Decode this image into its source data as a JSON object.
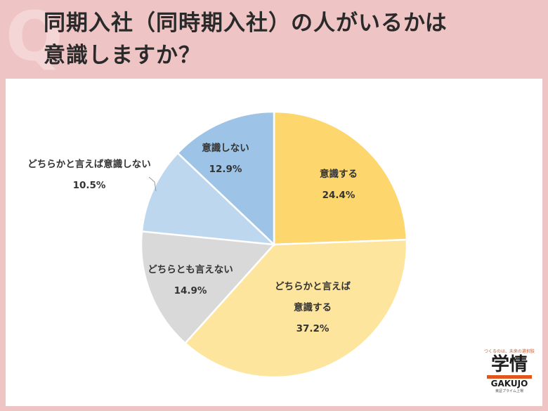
{
  "header": {
    "title_line1": "同期入社（同時期入社）の人がいるかは",
    "title_line2": "意識しますか？"
  },
  "chart_data": {
    "type": "pie",
    "start": "12 o'clock, clockwise",
    "slices": [
      {
        "label_lines": [
          "意識する"
        ],
        "value": 24.4,
        "value_text": "24.4%",
        "color": "#fdd76e"
      },
      {
        "label_lines": [
          "どちらかと言えば",
          "意識する"
        ],
        "value": 37.2,
        "value_text": "37.2%",
        "color": "#fde59d"
      },
      {
        "label_lines": [
          "どちらとも言えない"
        ],
        "value": 14.9,
        "value_text": "14.9%",
        "color": "#d9d9d9"
      },
      {
        "label_lines": [
          "どちらかと言えば意識しない"
        ],
        "value": 10.5,
        "value_text": "10.5%",
        "color": "#bdd7ee"
      },
      {
        "label_lines": [
          "意識しない"
        ],
        "value": 12.9,
        "value_text": "12.9%",
        "color": "#9dc3e6"
      }
    ]
  },
  "logo": {
    "tagline": "つくるのは、未来の選択肢",
    "kanji": "学情",
    "roman": "GAKUJO",
    "sub": "東証プライム上場",
    "accent_color": "#e0561f"
  }
}
